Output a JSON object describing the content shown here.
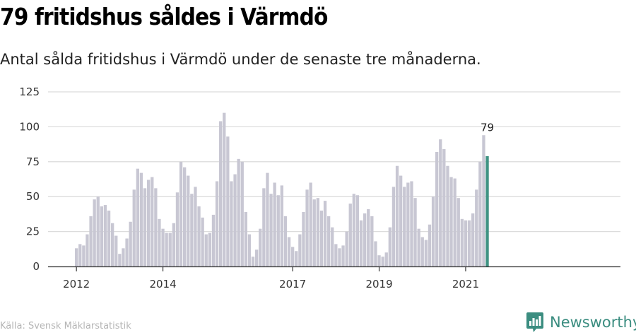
{
  "header": {
    "title": "79 fritidshus såldes i Värmdö",
    "subtitle": "Antal sålda fritidshus i Värmdö under de senaste tre månaderna."
  },
  "footer": {
    "source": "Källa: Svensk Mäklarstatistik",
    "brand": "Newsworthy"
  },
  "colors": {
    "bar": "#c8c7d3",
    "highlight": "#3f9383",
    "grid": "#dcdcdc",
    "brand": "#3b8d80"
  },
  "icons": {
    "brand_logo": "bar-chart-speech-bubble-icon"
  },
  "chart_data": {
    "type": "bar",
    "ylim": [
      0,
      125
    ],
    "yticks": [
      0,
      25,
      50,
      75,
      100,
      125
    ],
    "xtick_labels": [
      "2012",
      "2014",
      "2017",
      "2019",
      "2021"
    ],
    "xtick_index": [
      0,
      24,
      60,
      84,
      108
    ],
    "grid": "horizontal",
    "values": [
      13,
      16,
      15,
      23,
      36,
      48,
      50,
      43,
      44,
      40,
      31,
      22,
      9,
      13,
      20,
      32,
      55,
      70,
      67,
      56,
      62,
      64,
      56,
      34,
      27,
      24,
      24,
      31,
      53,
      75,
      71,
      65,
      52,
      57,
      43,
      35,
      23,
      24,
      37,
      61,
      104,
      110,
      93,
      61,
      66,
      77,
      75,
      39,
      23,
      7,
      12,
      27,
      56,
      67,
      52,
      60,
      51,
      58,
      36,
      21,
      14,
      11,
      23,
      39,
      55,
      60,
      48,
      49,
      40,
      47,
      36,
      28,
      16,
      13,
      15,
      25,
      45,
      52,
      51,
      33,
      38,
      41,
      36,
      18,
      8,
      7,
      10,
      28,
      57,
      72,
      65,
      57,
      60,
      61,
      49,
      27,
      21,
      19,
      30,
      50,
      82,
      91,
      84,
      72,
      64,
      63,
      49,
      34,
      33,
      33,
      38,
      55,
      75,
      94,
      79
    ],
    "highlight": {
      "index": 114,
      "label": "79"
    }
  }
}
